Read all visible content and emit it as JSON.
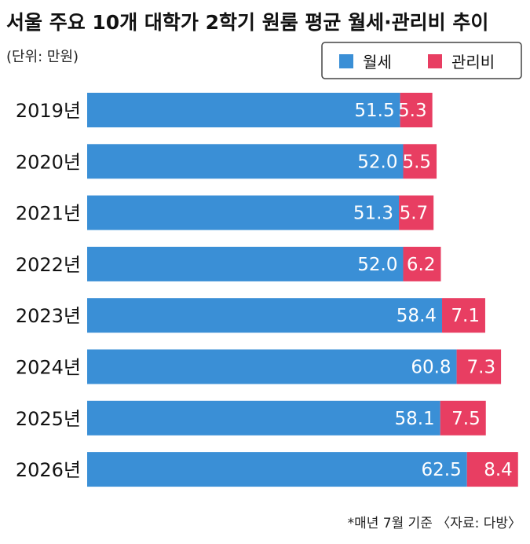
{
  "colors": {
    "rent": "#3a8fd6",
    "fee": "#e83e62"
  },
  "chart_data": {
    "type": "bar",
    "orientation": "horizontal",
    "stacked": true,
    "title": "서울 주요 10개 대학가 2학기 원룸 평균 월세·관리비 추이",
    "unit_note": "(단위: 만원)",
    "categories": [
      "2019년",
      "2020년",
      "2021년",
      "2022년",
      "2023년",
      "2024년",
      "2025년",
      "2026년"
    ],
    "series": [
      {
        "name": "월세",
        "values": [
          51.5,
          52.0,
          51.3,
          52.0,
          58.4,
          60.8,
          58.1,
          62.5
        ]
      },
      {
        "name": "관리비",
        "values": [
          5.3,
          5.5,
          5.7,
          6.2,
          7.1,
          7.3,
          7.5,
          8.4
        ]
      }
    ],
    "legend_position": "top-right",
    "grid": false,
    "source_note": "*매년 7월 기준 〈자료: 다방〉"
  }
}
